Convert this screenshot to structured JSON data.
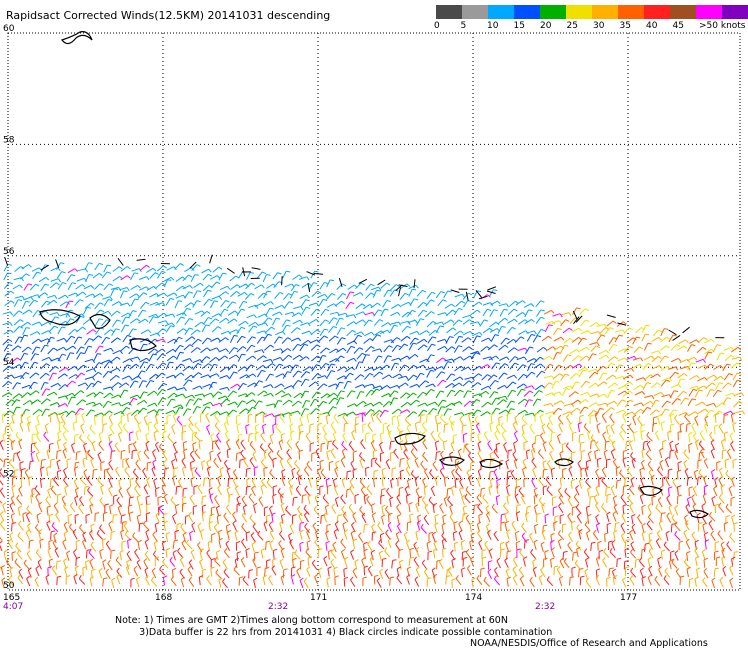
{
  "header": {
    "title": "Rapidsact Corrected Winds(12.5KM) 20141031 descending"
  },
  "legend": {
    "colors": [
      "#4a4a4a",
      "#9a9a9a",
      "#00a8ff",
      "#0050ff",
      "#00b000",
      "#f0e000",
      "#ffb000",
      "#ff6000",
      "#ff2020",
      "#a05020",
      "#ff00ff",
      "#8000c0"
    ],
    "labels": [
      "0",
      "5",
      "10",
      "15",
      "20",
      "25",
      "30",
      "35",
      "40",
      "45",
      ">50 knots"
    ]
  },
  "map": {
    "latitudes": [
      "60",
      "58",
      "56",
      "54",
      "52",
      "50"
    ],
    "longitudes": [
      "165",
      "168",
      "171",
      "174",
      "177"
    ],
    "time_labels": [
      "4:07",
      "2:32",
      "2:32"
    ]
  },
  "footer": {
    "note_line1": "Note: 1) Times are GMT 2)Times along bottom correspond to measurement at 60N",
    "note_line2": "3)Data buffer is 22 hrs from 20141031 4) Black circles indicate possible contamination",
    "credit": "NOAA/NESDIS/Office of Research and Applications"
  }
}
